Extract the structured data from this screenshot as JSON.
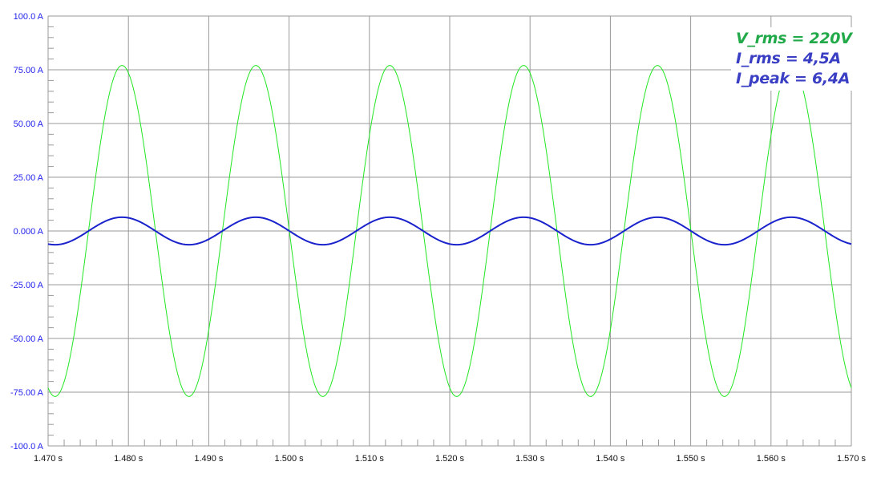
{
  "chart_data": {
    "type": "line",
    "xlim": [
      1.47,
      1.57
    ],
    "ylim": [
      -100,
      100
    ],
    "x_ticks": [
      "1.470 s",
      "1.480 s",
      "1.490 s",
      "1.500 s",
      "1.510 s",
      "1.520 s",
      "1.530 s",
      "1.540 s",
      "1.550 s",
      "1.560 s",
      "1.570 s"
    ],
    "y_ticks": [
      "100.0 A",
      "75.00 A",
      "50.00 A",
      "25.00 A",
      "0.000 A",
      "-25.00 A",
      "-50.00 A",
      "-75.00 A",
      "-100.0 A"
    ],
    "grid": true,
    "series": [
      {
        "form": "sinusoid",
        "amplitude": 77,
        "frequency_hz": 60,
        "peak_time_s": 1.4792,
        "color": "#22e622"
      },
      {
        "form": "sinusoid",
        "amplitude": 6.4,
        "frequency_hz": 60,
        "peak_time_s": 1.4792,
        "color": "#1a22cc"
      }
    ],
    "annotations": [
      {
        "text": "V_rms = 220V",
        "color": "#22aa4a"
      },
      {
        "text": "I_rms = 4,5A",
        "color": "#3a3fc4"
      },
      {
        "text": "I_peak = 6,4A",
        "color": "#3a3fc4"
      }
    ]
  }
}
